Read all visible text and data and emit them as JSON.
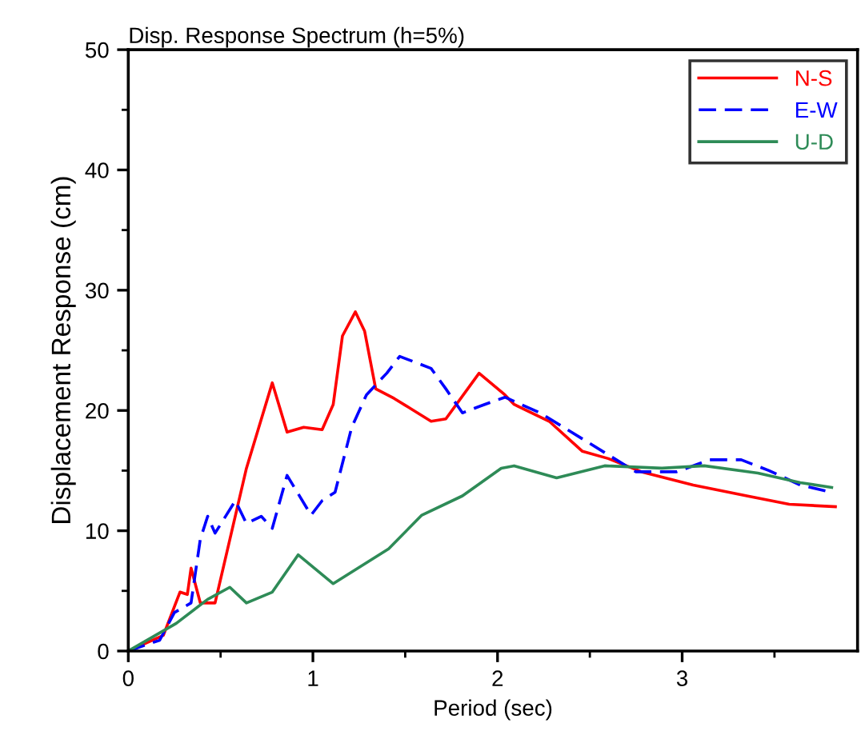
{
  "chart_data": {
    "type": "line",
    "title": "Disp. Response Spectrum (h=5%)",
    "xlabel": "Period (sec)",
    "ylabel": "Displacement Response (cm)",
    "xlim": [
      0,
      3.95
    ],
    "ylim": [
      0,
      50
    ],
    "xticks": [
      0,
      1,
      2,
      3
    ],
    "yticks": [
      0,
      10,
      20,
      30,
      40,
      50
    ],
    "grid": false,
    "legend": "top right",
    "marker": "none",
    "series": [
      {
        "name": "N-S",
        "color": "#ff0000",
        "line_style": "solid",
        "x": [
          0,
          0.19,
          0.28,
          0.32,
          0.34,
          0.39,
          0.47,
          0.64,
          0.78,
          0.86,
          0.95,
          1.05,
          1.11,
          1.16,
          1.23,
          1.28,
          1.34,
          1.44,
          1.64,
          1.72,
          1.9,
          2.04,
          2.09,
          2.28,
          2.46,
          2.6,
          2.78,
          3.06,
          3.35,
          3.58,
          3.83
        ],
        "values": [
          0,
          1.3,
          4.9,
          4.7,
          6.9,
          4.0,
          4.0,
          15.2,
          22.3,
          18.2,
          18.6,
          18.4,
          20.5,
          26.2,
          28.2,
          26.6,
          21.8,
          21.0,
          19.1,
          19.3,
          23.1,
          21.3,
          20.5,
          19.1,
          16.6,
          16.0,
          14.9,
          13.8,
          12.9,
          12.2,
          12.0
        ]
      },
      {
        "name": "E-W",
        "color": "#0000ff",
        "line_style": "dashed",
        "x": [
          0,
          0.17,
          0.25,
          0.34,
          0.39,
          0.43,
          0.47,
          0.58,
          0.64,
          0.72,
          0.78,
          0.86,
          0.99,
          1.05,
          1.12,
          1.21,
          1.29,
          1.4,
          1.47,
          1.64,
          1.72,
          1.81,
          1.93,
          2.04,
          2.23,
          2.4,
          2.58,
          2.75,
          2.97,
          3.15,
          3.32,
          3.47,
          3.64,
          3.78
        ],
        "values": [
          0,
          0.9,
          3.2,
          4.0,
          9.3,
          11.2,
          9.8,
          12.5,
          10.6,
          11.2,
          10.2,
          14.6,
          11.3,
          12.5,
          13.2,
          18.6,
          21.3,
          23.1,
          24.5,
          23.5,
          21.8,
          19.8,
          20.5,
          21.1,
          19.8,
          18.2,
          16.5,
          14.9,
          14.9,
          15.9,
          15.9,
          15.0,
          13.8,
          13.3
        ]
      },
      {
        "name": "U-D",
        "color": "#2e8b57",
        "line_style": "solid",
        "x": [
          0,
          0.26,
          0.43,
          0.55,
          0.64,
          0.78,
          0.92,
          1.11,
          1.41,
          1.59,
          1.81,
          2.02,
          2.09,
          2.32,
          2.58,
          2.89,
          3.12,
          3.41,
          3.64,
          3.81
        ],
        "values": [
          0,
          2.3,
          4.3,
          5.3,
          4.0,
          4.9,
          8.0,
          5.6,
          8.5,
          11.3,
          12.9,
          15.2,
          15.4,
          14.4,
          15.4,
          15.2,
          15.4,
          14.8,
          14.0,
          13.6
        ]
      }
    ]
  }
}
